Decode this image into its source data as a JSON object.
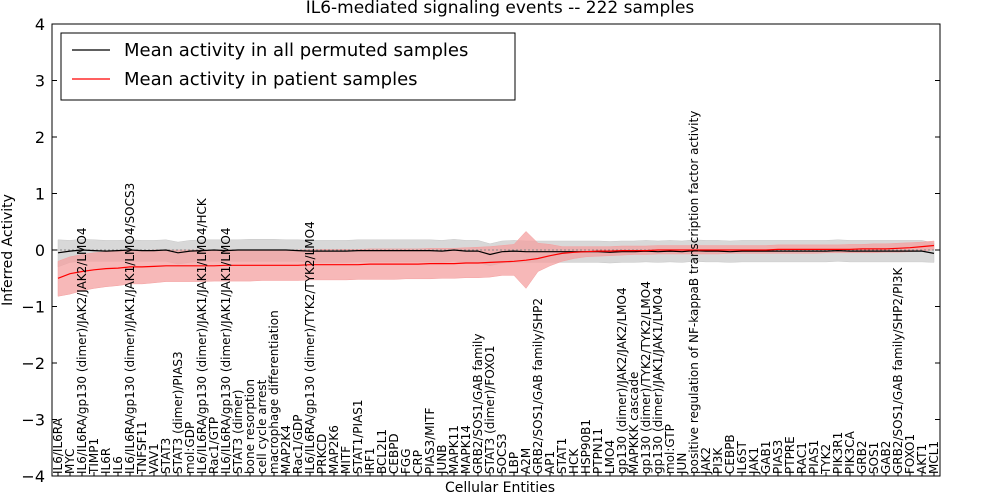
{
  "chart_data": {
    "type": "line",
    "title": "IL6-mediated signaling events -- 222 samples",
    "xlabel": "Cellular Entities",
    "ylabel": "Inferred Activity",
    "ylim": [
      -4,
      4
    ],
    "yticks": [
      -4,
      -3,
      -2,
      -1,
      0,
      1,
      2,
      3,
      4
    ],
    "legend_position": "top-left",
    "categories": [
      "IL6/IL6RA",
      "MYC",
      "IL6/IL6RA/gp130 (dimer)/JAK2/JAK2/LMO4",
      "TIMP1",
      "IL6R",
      "IL6",
      "IL6/IL6RA/gp130 (dimer)/JAK1/JAK1/LMO4/SOCS3",
      "TNFSF11",
      "VAV1",
      "STAT3",
      "STAT3 (dimer)/PIAS3",
      "mol:GDP",
      "IL6/IL6RA/gp130 (dimer)/JAK1/JAK1/LMO4/HCK",
      "Rac1/GTP",
      "IL6/IL6RA/gp130 (dimer)/JAK1/JAK1/LMO4",
      "STAT3 (dimer)",
      "bone resorption",
      "cell cycle arrest",
      "macrophage differentiation",
      "MAP2K4",
      "Rac1/GDP",
      "IL6/IL6RA/gp130 (dimer)/TYK2/TYK2/LMO4",
      "PRKCD",
      "MAP2K6",
      "MITF",
      "STAT1/PIAS1",
      "IRF1",
      "BCL2L1",
      "CEBPD",
      "FGG",
      "CRP",
      "PIAS3/MITF",
      "JUNB",
      "MAPK11",
      "MAPK14",
      "GRB2/SOS1/GAB family",
      "STAT3 (dimer)/FOXO1",
      "SOCS3",
      "LBP",
      "A2M",
      "GRB2/SOS1/GAB family/SHP2",
      "AP1",
      "STAT1",
      "HCK",
      "HSP90B1",
      "PTPN11",
      "LMO4",
      "gp130 (dimer)/JAK2/JAK2/LMO4",
      "MAPKKK cascade",
      "gp130 (dimer)/TYK2/TYK2/LMO4",
      "gp130 (dimer)/JAK1/JAK1/LMO4",
      "mol:GTP",
      "JUN",
      "positive regulation of NF-kappaB transcription factor activity",
      "JAK2",
      "PI3K",
      "CEBPB",
      "IL6ST",
      "JAK1",
      "GAB1",
      "PIAS3",
      "PTPRE",
      "RAC1",
      "PIAS1",
      "TYK2",
      "PIK3R1",
      "PIK3CA",
      "GRB2",
      "SOS1",
      "GAB2",
      "GRB2/SOS1/GAB family/SHP2/PI3K",
      "FOXO1",
      "AKT1",
      "MCL1"
    ],
    "series": [
      {
        "name": "Mean activity in all permuted samples",
        "color": "#000000",
        "band_color": "#c8c8c8",
        "values": [
          -0.05,
          -0.02,
          0.0,
          -0.01,
          -0.02,
          -0.01,
          0.0,
          -0.01,
          -0.01,
          0.0,
          -0.05,
          -0.02,
          -0.01,
          0.0,
          -0.01,
          0.0,
          0.0,
          0.0,
          0.0,
          0.0,
          -0.01,
          -0.02,
          -0.02,
          -0.02,
          -0.02,
          -0.01,
          -0.01,
          -0.01,
          -0.01,
          -0.01,
          -0.01,
          -0.01,
          -0.02,
          0.0,
          -0.02,
          -0.02,
          -0.08,
          -0.03,
          -0.02,
          -0.03,
          -0.03,
          -0.03,
          -0.03,
          -0.03,
          -0.03,
          -0.03,
          -0.04,
          -0.03,
          -0.03,
          -0.02,
          -0.03,
          -0.02,
          -0.03,
          -0.01,
          -0.02,
          -0.02,
          -0.03,
          -0.02,
          -0.02,
          -0.02,
          -0.02,
          -0.02,
          -0.02,
          -0.02,
          -0.02,
          -0.01,
          -0.02,
          -0.02,
          -0.02,
          -0.02,
          -0.02,
          -0.02,
          -0.02,
          -0.06
        ],
        "lower": [
          -0.3,
          -0.22,
          -0.2,
          -0.2,
          -0.2,
          -0.2,
          -0.2,
          -0.2,
          -0.2,
          -0.2,
          -0.25,
          -0.22,
          -0.2,
          -0.2,
          -0.2,
          -0.2,
          -0.2,
          -0.2,
          -0.2,
          -0.2,
          -0.2,
          -0.22,
          -0.22,
          -0.22,
          -0.22,
          -0.21,
          -0.21,
          -0.21,
          -0.21,
          -0.21,
          -0.21,
          -0.21,
          -0.22,
          -0.2,
          -0.22,
          -0.22,
          -0.28,
          -0.23,
          -0.22,
          -0.22,
          -0.22,
          -0.22,
          -0.22,
          -0.22,
          -0.22,
          -0.22,
          -0.23,
          -0.22,
          -0.22,
          -0.21,
          -0.22,
          -0.21,
          -0.22,
          -0.2,
          -0.21,
          -0.21,
          -0.22,
          -0.21,
          -0.21,
          -0.21,
          -0.21,
          -0.21,
          -0.21,
          -0.21,
          -0.21,
          -0.2,
          -0.21,
          -0.21,
          -0.21,
          -0.21,
          -0.21,
          -0.21,
          -0.21,
          -0.22
        ],
        "upper": [
          0.18,
          0.17,
          0.19,
          0.18,
          0.17,
          0.17,
          0.18,
          0.17,
          0.17,
          0.18,
          0.14,
          0.17,
          0.18,
          0.18,
          0.18,
          0.18,
          0.19,
          0.19,
          0.19,
          0.18,
          0.18,
          0.17,
          0.17,
          0.17,
          0.17,
          0.18,
          0.18,
          0.18,
          0.18,
          0.18,
          0.18,
          0.18,
          0.17,
          0.19,
          0.17,
          0.17,
          0.11,
          0.16,
          0.17,
          0.16,
          0.16,
          0.16,
          0.16,
          0.16,
          0.16,
          0.16,
          0.15,
          0.16,
          0.16,
          0.17,
          0.16,
          0.17,
          0.16,
          0.18,
          0.17,
          0.17,
          0.16,
          0.17,
          0.17,
          0.17,
          0.17,
          0.17,
          0.17,
          0.17,
          0.17,
          0.18,
          0.17,
          0.17,
          0.17,
          0.17,
          0.17,
          0.17,
          0.17,
          0.12
        ]
      },
      {
        "name": "Mean activity in patient samples",
        "color": "#ff0000",
        "band_color": "#f4a0a0",
        "values": [
          -0.5,
          -0.42,
          -0.38,
          -0.35,
          -0.33,
          -0.32,
          -0.3,
          -0.3,
          -0.29,
          -0.28,
          -0.28,
          -0.28,
          -0.28,
          -0.28,
          -0.27,
          -0.27,
          -0.27,
          -0.27,
          -0.27,
          -0.27,
          -0.27,
          -0.26,
          -0.26,
          -0.26,
          -0.26,
          -0.26,
          -0.25,
          -0.25,
          -0.25,
          -0.25,
          -0.25,
          -0.24,
          -0.24,
          -0.24,
          -0.23,
          -0.23,
          -0.22,
          -0.21,
          -0.2,
          -0.18,
          -0.15,
          -0.1,
          -0.06,
          -0.04,
          -0.03,
          -0.02,
          -0.02,
          -0.01,
          -0.01,
          -0.01,
          0.0,
          0.0,
          0.0,
          0.0,
          0.0,
          0.0,
          0.0,
          0.0,
          0.0,
          0.0,
          0.01,
          0.01,
          0.01,
          0.01,
          0.01,
          0.01,
          0.01,
          0.02,
          0.02,
          0.02,
          0.03,
          0.04,
          0.06,
          0.08
        ],
        "lower": [
          -0.82,
          -0.78,
          -0.72,
          -0.68,
          -0.65,
          -0.63,
          -0.6,
          -0.6,
          -0.58,
          -0.56,
          -0.56,
          -0.56,
          -0.56,
          -0.55,
          -0.55,
          -0.55,
          -0.55,
          -0.54,
          -0.54,
          -0.54,
          -0.54,
          -0.53,
          -0.53,
          -0.53,
          -0.53,
          -0.52,
          -0.52,
          -0.52,
          -0.52,
          -0.51,
          -0.51,
          -0.51,
          -0.5,
          -0.5,
          -0.49,
          -0.49,
          -0.48,
          -0.45,
          -0.45,
          -0.68,
          -0.38,
          -0.28,
          -0.2,
          -0.15,
          -0.12,
          -0.11,
          -0.1,
          -0.09,
          -0.08,
          -0.08,
          -0.07,
          -0.07,
          -0.07,
          -0.07,
          -0.07,
          -0.07,
          -0.06,
          -0.06,
          -0.06,
          -0.06,
          -0.06,
          -0.06,
          -0.06,
          -0.06,
          -0.05,
          -0.05,
          -0.05,
          -0.05,
          -0.05,
          -0.04,
          -0.04,
          -0.03,
          -0.02,
          0.0
        ],
        "upper": [
          -0.2,
          -0.12,
          -0.08,
          -0.05,
          -0.03,
          -0.02,
          -0.01,
          -0.01,
          0.0,
          0.0,
          0.0,
          0.0,
          0.0,
          0.0,
          0.0,
          0.0,
          0.0,
          0.0,
          0.0,
          0.0,
          0.0,
          0.01,
          0.01,
          0.01,
          0.01,
          0.01,
          0.02,
          0.02,
          0.02,
          0.02,
          0.02,
          0.03,
          0.03,
          0.03,
          0.04,
          0.05,
          0.06,
          0.08,
          0.1,
          0.33,
          0.12,
          0.1,
          0.06,
          0.06,
          0.06,
          0.06,
          0.06,
          0.07,
          0.07,
          0.07,
          0.08,
          0.08,
          0.08,
          0.08,
          0.08,
          0.08,
          0.08,
          0.08,
          0.08,
          0.08,
          0.09,
          0.09,
          0.09,
          0.09,
          0.09,
          0.09,
          0.1,
          0.1,
          0.11,
          0.11,
          0.12,
          0.13,
          0.14,
          0.16
        ]
      }
    ]
  }
}
